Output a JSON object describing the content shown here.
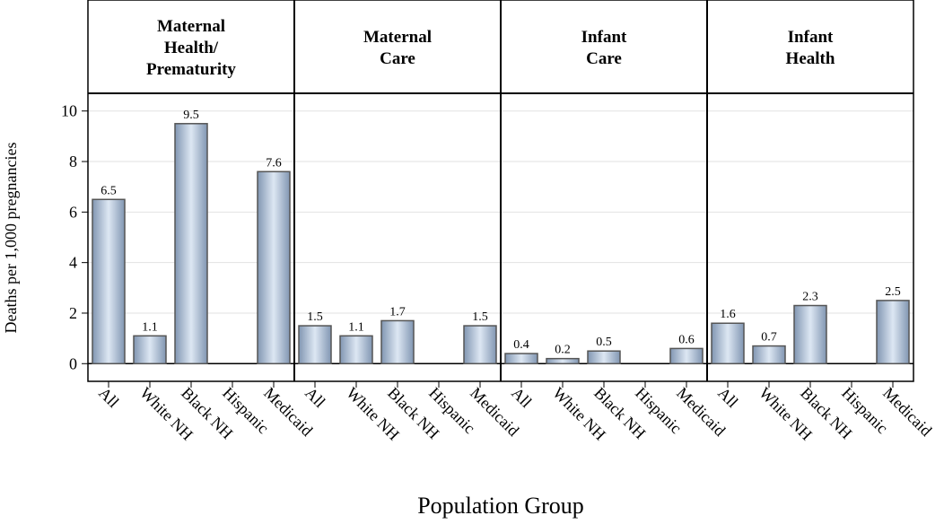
{
  "chart_data": {
    "type": "bar",
    "y_label": "Deaths per 1,000 pregnancies",
    "x_label": "Population Group",
    "categories": [
      "All",
      "White NH",
      "Black NH",
      "Hispanic",
      "Medicaid"
    ],
    "ylim": [
      -0.7,
      10.7
    ],
    "yticks": [
      0,
      2,
      4,
      6,
      8,
      10
    ],
    "grid": true,
    "color": "#b8c8dc",
    "panels": [
      {
        "title": [
          "Maternal",
          "Health/",
          "Prematurity"
        ],
        "values": [
          6.5,
          1.1,
          9.5,
          null,
          7.6
        ]
      },
      {
        "title": [
          "Maternal",
          "Care"
        ],
        "values": [
          1.5,
          1.1,
          1.7,
          null,
          1.5
        ]
      },
      {
        "title": [
          "Infant",
          "Care"
        ],
        "values": [
          0.4,
          0.2,
          0.5,
          null,
          0.6
        ]
      },
      {
        "title": [
          "Infant",
          "Health"
        ],
        "values": [
          1.6,
          0.7,
          2.3,
          null,
          2.5
        ]
      }
    ]
  }
}
